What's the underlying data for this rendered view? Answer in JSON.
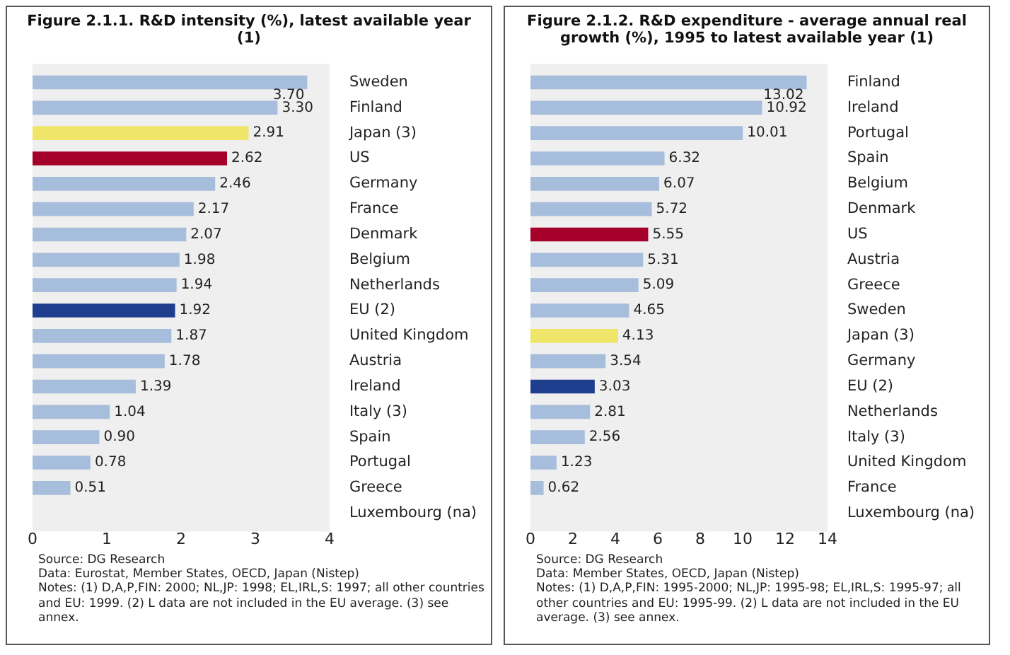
{
  "chart_data": [
    {
      "type": "bar",
      "orientation": "horizontal",
      "title": "Figure 2.1.1. R&D intensity (%), latest available year (1)",
      "categories": [
        "Sweden",
        "Finland",
        "Japan (3)",
        "US",
        "Germany",
        "France",
        "Denmark",
        "Belgium",
        "Netherlands",
        "EU (2)",
        "United Kingdom",
        "Austria",
        "Ireland",
        "Italy (3)",
        "Spain",
        "Portugal",
        "Greece",
        "Luxembourg (na)"
      ],
      "values": [
        3.7,
        3.3,
        2.91,
        2.62,
        2.46,
        2.17,
        2.07,
        1.98,
        1.94,
        1.92,
        1.87,
        1.78,
        1.39,
        1.04,
        0.9,
        0.78,
        0.51,
        null
      ],
      "value_labels": [
        "3.70",
        "3.30",
        "2.91",
        "2.62",
        "2.46",
        "2.17",
        "2.07",
        "1.98",
        "1.94",
        "1.92",
        "1.87",
        "1.78",
        "1.39",
        "1.04",
        "0.90",
        "0.78",
        "0.51",
        null
      ],
      "colors": [
        "#a6bedc",
        "#a6bedc",
        "#efe569",
        "#a4002a",
        "#a6bedc",
        "#a6bedc",
        "#a6bedc",
        "#a6bedc",
        "#a6bedc",
        "#1f3f8e",
        "#a6bedc",
        "#a6bedc",
        "#a6bedc",
        "#a6bedc",
        "#a6bedc",
        "#a6bedc",
        "#a6bedc",
        "#a6bedc"
      ],
      "xlim": [
        0,
        4
      ],
      "xticks": [
        0,
        1,
        2,
        3,
        4
      ],
      "annotations": [
        "Source: DG Research",
        "Data: Eurostat, Member States, OECD, Japan (Nistep)",
        "Notes: (1) D,A,P,FIN: 2000; NL,JP: 1998; EL,IRL,S: 1997; all other countries and EU: 1999. (2) L data are not included in the EU average. (3) see annex."
      ]
    },
    {
      "type": "bar",
      "orientation": "horizontal",
      "title": "Figure 2.1.2. R&D expenditure - average annual real growth (%), 1995 to latest available year (1)",
      "categories": [
        "Finland",
        "Ireland",
        "Portugal",
        "Spain",
        "Belgium",
        "Denmark",
        "US",
        "Austria",
        "Greece",
        "Sweden",
        "Japan (3)",
        "Germany",
        "EU (2)",
        "Netherlands",
        "Italy (3)",
        "United Kingdom",
        "France",
        "Luxembourg (na)"
      ],
      "values": [
        13.02,
        10.92,
        10.01,
        6.32,
        6.07,
        5.72,
        5.55,
        5.31,
        5.09,
        4.65,
        4.13,
        3.54,
        3.03,
        2.81,
        2.56,
        1.23,
        0.62,
        null
      ],
      "value_labels": [
        "13.02",
        "10.92",
        "10.01",
        "6.32",
        "6.07",
        "5.72",
        "5.55",
        "5.31",
        "5.09",
        "4.65",
        "4.13",
        "3.54",
        "3.03",
        "2.81",
        "2.56",
        "1.23",
        "0.62",
        null
      ],
      "colors": [
        "#a6bedc",
        "#a6bedc",
        "#a6bedc",
        "#a6bedc",
        "#a6bedc",
        "#a6bedc",
        "#a4002a",
        "#a6bedc",
        "#a6bedc",
        "#a6bedc",
        "#efe569",
        "#a6bedc",
        "#1f3f8e",
        "#a6bedc",
        "#a6bedc",
        "#a6bedc",
        "#a6bedc",
        "#a6bedc"
      ],
      "xlim": [
        0,
        14
      ],
      "xticks": [
        0,
        2,
        4,
        6,
        8,
        10,
        12,
        14
      ],
      "annotations": [
        "Source: DG Research",
        "Data: Member States, OECD, Japan (Nistep)",
        "Notes: (1) D,A,P,FIN: 1995-2000; NL,JP: 1995-98; EL,IRL,S: 1995-97; all other countries and EU: 1995-99. (2) L data are not included in the EU average. (3) see annex."
      ]
    }
  ]
}
